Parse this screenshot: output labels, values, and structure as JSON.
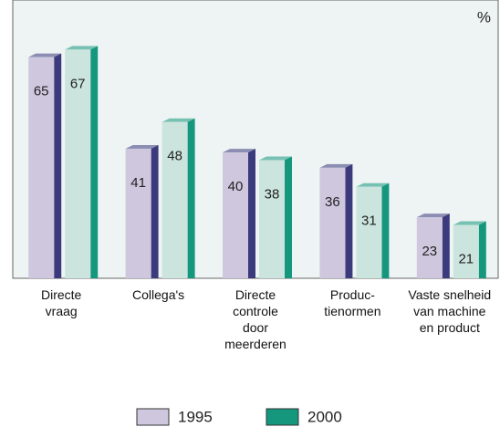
{
  "chart_data": {
    "type": "bar",
    "unit": "%",
    "categories": [
      "Directe\nvraag",
      "Collega's",
      "Directe\ncontrole\ndoor\nmeerderen",
      "Produc-\ntienormen",
      "Vaste snelheid\nvan machine\nen product"
    ],
    "series": [
      {
        "name": "1995",
        "color": "#cec7de",
        "side_color": "#3b3a7c",
        "values": [
          65,
          41,
          40,
          36,
          23
        ]
      },
      {
        "name": "2000",
        "color": "#cbe5de",
        "side_color": "#15977d",
        "values": [
          67,
          48,
          38,
          31,
          21
        ]
      }
    ],
    "ylim": [
      7,
      80
    ]
  }
}
